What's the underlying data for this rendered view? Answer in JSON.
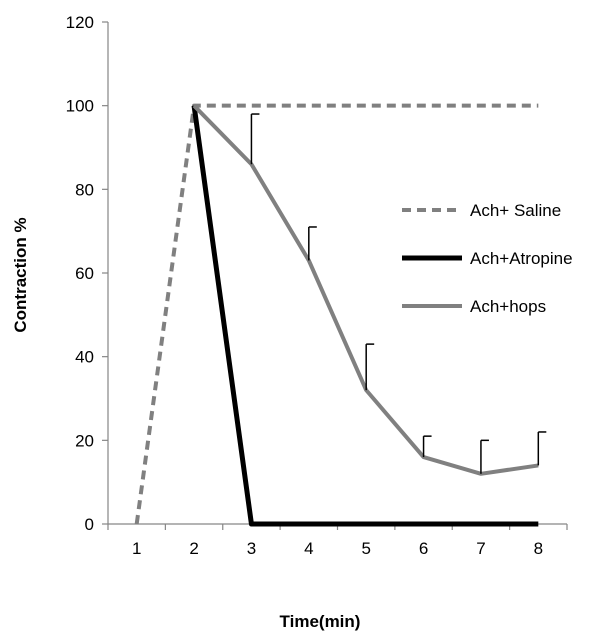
{
  "chart_data": {
    "type": "line",
    "title": "",
    "xlabel": "Time(min)",
    "ylabel": "Contraction %",
    "x": [
      1,
      2,
      3,
      4,
      5,
      6,
      7,
      8
    ],
    "xlim": [
      0.5,
      8.5
    ],
    "ylim": [
      0,
      120
    ],
    "yticks": [
      0,
      20,
      40,
      60,
      80,
      100,
      120
    ],
    "grid": false,
    "legend_position": "right",
    "series": [
      {
        "name": "Ach+ Saline",
        "x": [
          1,
          2,
          3,
          4,
          5,
          6,
          7,
          8
        ],
        "values": [
          0,
          100,
          100,
          100,
          100,
          100,
          100,
          100
        ],
        "color": "#808080",
        "dashed": true
      },
      {
        "name": "Ach+Atropine",
        "x": [
          2,
          3,
          4,
          5,
          6,
          7,
          8
        ],
        "values": [
          100,
          0,
          0,
          0,
          0,
          0,
          0
        ],
        "color": "#000000",
        "dashed": false
      },
      {
        "name": "Ach+hops",
        "x": [
          2,
          3,
          4,
          5,
          6,
          7,
          8
        ],
        "values": [
          100,
          86,
          63,
          32,
          16,
          12,
          14
        ],
        "error_upper": [
          0,
          12,
          8,
          11,
          5,
          8,
          8
        ],
        "color": "#808080",
        "dashed": false
      }
    ]
  }
}
